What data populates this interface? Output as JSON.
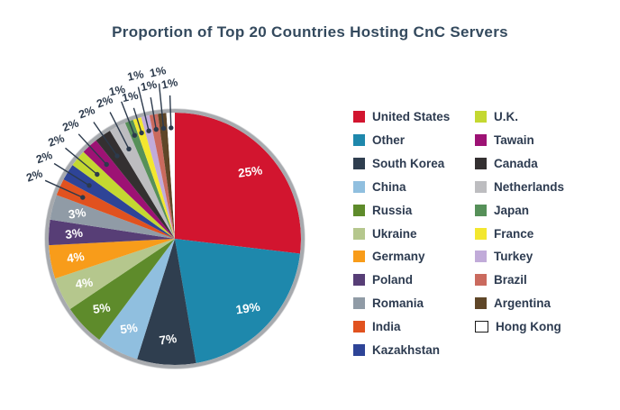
{
  "chart_data": {
    "type": "pie",
    "title": "Proportion of Top 20 Countries Hosting CnC Servers",
    "unit": "%",
    "slices": [
      {
        "label": "United States",
        "value": 25,
        "display": "25%",
        "color": "#d2152f",
        "label_placement": "inside"
      },
      {
        "label": "Other",
        "value": 19,
        "display": "19%",
        "color": "#1e88ac",
        "label_placement": "inside"
      },
      {
        "label": "South Korea",
        "value": 7,
        "display": "7%",
        "color": "#2f3e4f",
        "label_placement": "inside"
      },
      {
        "label": "China",
        "value": 5,
        "display": "5%",
        "color": "#90bfdf",
        "label_placement": "inside"
      },
      {
        "label": "Russia",
        "value": 5,
        "display": "5%",
        "color": "#5e8b2b",
        "label_placement": "inside"
      },
      {
        "label": "Ukraine",
        "value": 4,
        "display": "4%",
        "color": "#b5c78d",
        "label_placement": "inside"
      },
      {
        "label": "Germany",
        "value": 4,
        "display": "4%",
        "color": "#f89c1a",
        "label_placement": "inside"
      },
      {
        "label": "Poland",
        "value": 3,
        "display": "3%",
        "color": "#573e76",
        "label_placement": "inside"
      },
      {
        "label": "Romania",
        "value": 3,
        "display": "3%",
        "color": "#909ba6",
        "label_placement": "inside"
      },
      {
        "label": "India",
        "value": 2,
        "display": "2%",
        "color": "#e1521f",
        "label_placement": "outside"
      },
      {
        "label": "Kazakhstan",
        "value": 2,
        "display": "2%",
        "color": "#2e4497",
        "label_placement": "outside"
      },
      {
        "label": "U.K.",
        "value": 2,
        "display": "2%",
        "color": "#c4d831",
        "label_placement": "outside"
      },
      {
        "label": "Tawain",
        "value": 2,
        "display": "2%",
        "color": "#9d1274",
        "label_placement": "outside"
      },
      {
        "label": "Canada",
        "value": 2,
        "display": "2%",
        "color": "#343031",
        "label_placement": "outside"
      },
      {
        "label": "Netherlands",
        "value": 2,
        "display": "2%",
        "color": "#bdbdc0",
        "label_placement": "outside"
      },
      {
        "label": "Japan",
        "value": 1,
        "display": "1%",
        "color": "#569059",
        "label_placement": "outside"
      },
      {
        "label": "France",
        "value": 1,
        "display": "1%",
        "color": "#f3e72f",
        "label_placement": "outside"
      },
      {
        "label": "Turkey",
        "value": 1,
        "display": "1%",
        "color": "#c1abd9",
        "label_placement": "outside"
      },
      {
        "label": "Brazil",
        "value": 1,
        "display": "1%",
        "color": "#ca6a5e",
        "label_placement": "outside"
      },
      {
        "label": "Argentina",
        "value": 1,
        "display": "1%",
        "color": "#5f4628",
        "label_placement": "outside"
      },
      {
        "label": "Hong Kong",
        "value": 1,
        "display": "1%",
        "color": "#ffffff",
        "swatch_border": "#1a1a1a",
        "label_placement": "outside"
      }
    ],
    "legend": {
      "position": "right",
      "columns": 2,
      "left_column_count": 11
    },
    "styles": {
      "background": "#ffffff",
      "title_color": "#344a5e",
      "legend_text_color": "#2d3b50",
      "inside_label_color": "#ffffff",
      "outside_label_color": "#2c3a4c",
      "leader_line_color": "#2c3a4c",
      "ring_color": "#a7aaae"
    }
  }
}
